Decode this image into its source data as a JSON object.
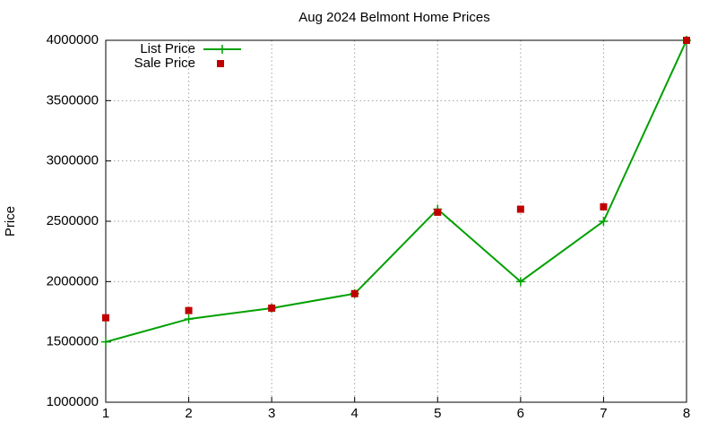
{
  "chart_data": {
    "type": "line",
    "title": "Aug 2024 Belmont Home Prices",
    "y_label": "Price",
    "x": [
      1,
      2,
      3,
      4,
      5,
      6,
      7,
      8
    ],
    "series": [
      {
        "name": "List Price",
        "type": "line",
        "color": "#00a000",
        "values": [
          1500000,
          1690000,
          1780000,
          1900000,
          2600000,
          2000000,
          2500000,
          4000000
        ]
      },
      {
        "name": "Sale Price",
        "type": "scatter",
        "color": "#c00000",
        "values": [
          1700000,
          1760000,
          1780000,
          1900000,
          2575000,
          2600000,
          2620000,
          4000000
        ]
      }
    ],
    "xlim": [
      1,
      8
    ],
    "xticks": [
      1,
      2,
      3,
      4,
      5,
      6,
      7,
      8
    ],
    "ylim": [
      1000000,
      4000000
    ],
    "yticks": [
      1000000,
      1500000,
      2000000,
      2500000,
      3000000,
      3500000,
      4000000
    ],
    "grid": true,
    "legend": "top-left"
  }
}
